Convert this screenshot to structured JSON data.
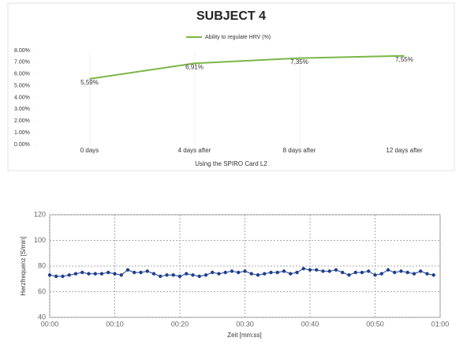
{
  "chart_data": [
    {
      "type": "line",
      "title": "SUBJECT 4",
      "xlabel": "Using the SPIRO Card L2",
      "categories": [
        "0 days",
        "4 days after",
        "8 days after",
        "12 days after"
      ],
      "series": [
        {
          "name": "Ability to regulate HRV (%)",
          "color": "#7ab648",
          "values": [
            5.59,
            6.91,
            7.35,
            7.55
          ],
          "value_labels": [
            "5,59%",
            "6,91%",
            "7,35%",
            "7,55%"
          ]
        }
      ],
      "ylim": [
        0,
        8
      ],
      "yticks": [
        {
          "value": 0,
          "label": "0.00%"
        },
        {
          "value": 1,
          "label": "1.00%"
        },
        {
          "value": 2,
          "label": "2.00%"
        },
        {
          "value": 3,
          "label": "3.00%"
        },
        {
          "value": 4,
          "label": "4.00%"
        },
        {
          "value": 5,
          "label": "5.00%"
        },
        {
          "value": 6,
          "label": "6.00%"
        },
        {
          "value": 7,
          "label": "7.00%"
        },
        {
          "value": 8,
          "label": "8.00%"
        }
      ],
      "legend": "top"
    },
    {
      "type": "line",
      "xlabel": "Zeit [mm:ss]",
      "ylabel": "Herzfrequenz [S/min]",
      "x": [
        0,
        1,
        2,
        3,
        4,
        5,
        6,
        7,
        8,
        9,
        10,
        11,
        12,
        13,
        14,
        15,
        16,
        17,
        18,
        19,
        20,
        21,
        22,
        23,
        24,
        25,
        26,
        27,
        28,
        29,
        30,
        31,
        32,
        33,
        34,
        35,
        36,
        37,
        38,
        39,
        40,
        41,
        42,
        43,
        44,
        45,
        46,
        47,
        48,
        49,
        50,
        51,
        52,
        53,
        54,
        55,
        56,
        57,
        58,
        59
      ],
      "series": [
        {
          "name": null,
          "color": "#1f3f8f",
          "values": [
            73,
            72,
            72,
            73,
            74,
            75,
            74,
            74,
            74,
            75,
            74,
            73,
            77,
            75,
            75,
            76,
            74,
            72,
            73,
            73,
            72,
            74,
            73,
            72,
            73,
            75,
            74,
            75,
            76,
            75,
            76,
            74,
            73,
            74,
            75,
            75,
            76,
            74,
            75,
            78,
            77,
            77,
            76,
            76,
            77,
            75,
            73,
            75,
            75,
            76,
            73,
            74,
            77,
            75,
            76,
            75,
            74,
            76,
            74,
            73
          ]
        }
      ],
      "xlim": [
        0,
        60
      ],
      "xticks": [
        {
          "value": 0,
          "label": "00:00"
        },
        {
          "value": 10,
          "label": "00:10"
        },
        {
          "value": 20,
          "label": "00:20"
        },
        {
          "value": 30,
          "label": "00:30"
        },
        {
          "value": 40,
          "label": "00:40"
        },
        {
          "value": 50,
          "label": "00:50"
        },
        {
          "value": 60,
          "label": "01:00"
        }
      ],
      "ylim": [
        40,
        120
      ],
      "yticks": [
        40,
        60,
        80,
        100,
        120
      ],
      "grid": true
    }
  ]
}
